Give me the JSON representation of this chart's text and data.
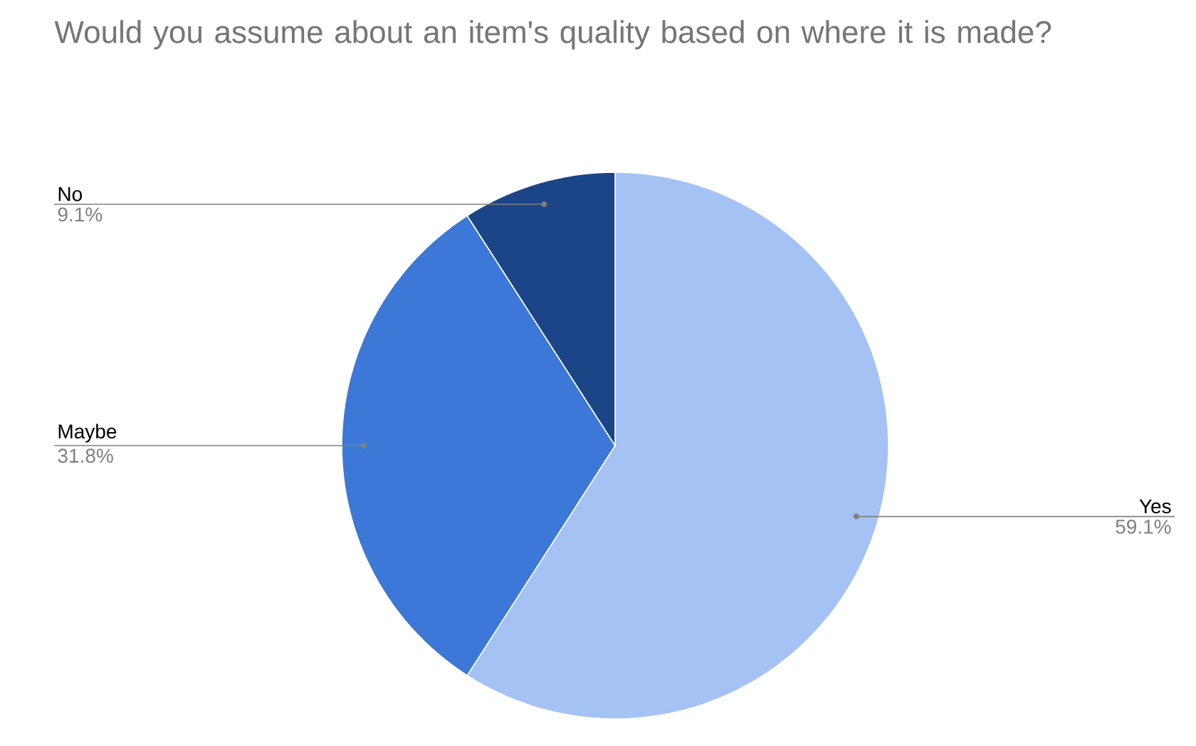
{
  "chart_data": {
    "type": "pie",
    "title": "Would you assume about an item's quality based on where it is made?",
    "categories": [
      "Yes",
      "Maybe",
      "No"
    ],
    "values": [
      59.1,
      31.8,
      9.1
    ],
    "value_labels": [
      "59.1%",
      "31.8%",
      "9.1%"
    ],
    "colors": [
      "#a4c2f4",
      "#3c78d8",
      "#1c4587"
    ]
  }
}
